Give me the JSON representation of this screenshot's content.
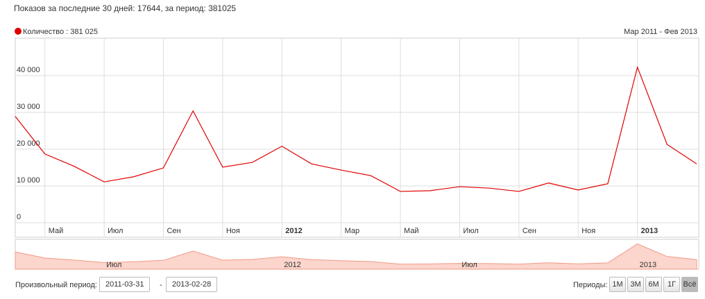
{
  "header": "Показов за последние 30 дней: 17644, за период: 381025",
  "chart_data": {
    "type": "line",
    "subtitle": "Мар 2011 - Фев 2013",
    "categories": [
      null,
      "Май",
      null,
      "Июл",
      null,
      "Сен",
      null,
      "Ноя",
      null,
      "2012",
      null,
      "Мар",
      null,
      "Май",
      null,
      "Июл",
      null,
      "Сен",
      null,
      "Ноя",
      null,
      "2013",
      null,
      null
    ],
    "series": [
      {
        "name": "Количество : 381 025",
        "color": "#e00000",
        "values": [
          28900,
          18700,
          15300,
          11100,
          12500,
          14900,
          30400,
          15100,
          16400,
          20800,
          16000,
          14300,
          12800,
          8500,
          8700,
          9800,
          9400,
          8500,
          10800,
          8900,
          10600,
          42300,
          21300,
          16000
        ]
      }
    ],
    "ylim": [
      0,
      50000
    ],
    "yticks": [
      0,
      {
        "value": 10000,
        "label": "10 000"
      },
      {
        "value": 20000,
        "label": "20 000"
      },
      {
        "value": 30000,
        "label": "30 000"
      },
      {
        "value": 40000,
        "label": "40 000"
      }
    ],
    "grid": true,
    "legend": "top-left"
  },
  "controls": {
    "range_label": "Произвольный период:",
    "from": "2011-03-31",
    "separator": "-",
    "to": "2013-02-28",
    "periods_label": "Периоды:",
    "periods": [
      "1М",
      "3М",
      "6М",
      "1Г",
      "Всё"
    ],
    "active": 4
  }
}
